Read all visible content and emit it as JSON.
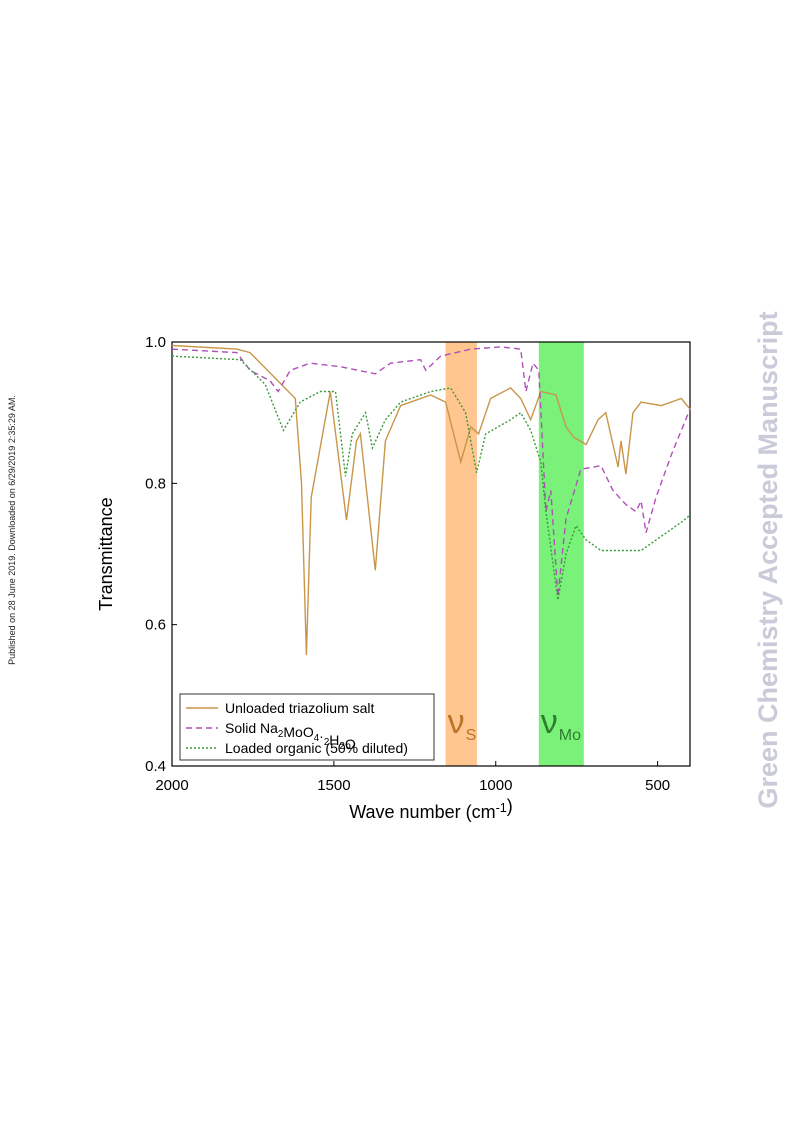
{
  "side_note": "Published on 28 June 2019. Downloaded on 6/29/2019 2:35:29 AM.",
  "watermark": "Green Chemistry Accepted Manuscript",
  "chart_data": {
    "type": "line",
    "x_label": "Wave number (cm-1)",
    "y_label": "Transmittance",
    "xlim": [
      2000,
      400
    ],
    "ylim": [
      0.4,
      1.0
    ],
    "xticks": [
      2000,
      1500,
      1000,
      500
    ],
    "yticks": [
      0.4,
      0.6,
      0.8,
      {
        "value": 1.0,
        "label": "1.0"
      }
    ],
    "bands": [
      {
        "from": 1155,
        "to": 1058,
        "color": "#ffc690",
        "symbol": "ν",
        "subscript": "S",
        "text_color": "#b8752a"
      },
      {
        "from": 867,
        "to": 728,
        "color": "#7af27a",
        "symbol": "ν",
        "subscript": "Mo",
        "text_color": "#2f7f2f"
      }
    ],
    "series": [
      {
        "name": "Unloaded triazolium salt",
        "color": "#c8964a",
        "dash": "solid",
        "x": [
          2000,
          1800,
          1759,
          1619,
          1600,
          1585,
          1570,
          1511,
          1461,
          1430,
          1418,
          1372,
          1341,
          1294,
          1201,
          1155,
          1108,
          1077,
          1053,
          1016,
          954,
          923,
          892,
          861,
          814,
          783,
          759,
          721,
          684,
          660,
          622,
          613,
          598,
          576,
          551,
          489,
          427,
          400
        ],
        "values": [
          0.995,
          0.99,
          0.985,
          0.92,
          0.8,
          0.557,
          0.78,
          0.93,
          0.748,
          0.86,
          0.87,
          0.677,
          0.86,
          0.91,
          0.925,
          0.915,
          0.83,
          0.88,
          0.87,
          0.92,
          0.935,
          0.92,
          0.89,
          0.93,
          0.925,
          0.88,
          0.865,
          0.855,
          0.89,
          0.9,
          0.823,
          0.86,
          0.813,
          0.9,
          0.915,
          0.91,
          0.92,
          0.905
        ]
      },
      {
        "name": "Solid Na2MoO4·2H2O",
        "color": "#b050b8",
        "dash": "dashed",
        "x": [
          2000,
          1800,
          1759,
          1697,
          1672,
          1635,
          1573,
          1480,
          1372,
          1325,
          1232,
          1216,
          1170,
          1077,
          985,
          923,
          907,
          885,
          867,
          845,
          830,
          808,
          783,
          737,
          675,
          638,
          598,
          567,
          551,
          536,
          505,
          458,
          400
        ],
        "values": [
          0.99,
          0.985,
          0.96,
          0.945,
          0.93,
          0.96,
          0.97,
          0.965,
          0.955,
          0.97,
          0.975,
          0.96,
          0.98,
          0.99,
          0.993,
          0.99,
          0.93,
          0.97,
          0.96,
          0.76,
          0.79,
          0.64,
          0.75,
          0.82,
          0.825,
          0.79,
          0.77,
          0.76,
          0.775,
          0.73,
          0.78,
          0.84,
          0.905
        ]
      },
      {
        "name": "Loaded organic (50% diluted)",
        "color": "#3a9a3a",
        "dash": "dotted",
        "x": [
          2000,
          1789,
          1712,
          1656,
          1604,
          1542,
          1495,
          1464,
          1443,
          1402,
          1381,
          1341,
          1294,
          1201,
          1139,
          1093,
          1059,
          1031,
          954,
          923,
          892,
          861,
          845,
          808,
          783,
          752,
          721,
          675,
          551,
          427,
          400
        ],
        "values": [
          0.98,
          0.975,
          0.94,
          0.875,
          0.915,
          0.93,
          0.93,
          0.81,
          0.87,
          0.9,
          0.85,
          0.89,
          0.915,
          0.93,
          0.935,
          0.9,
          0.815,
          0.87,
          0.89,
          0.9,
          0.875,
          0.83,
          0.76,
          0.635,
          0.7,
          0.74,
          0.72,
          0.705,
          0.705,
          0.745,
          0.755
        ]
      }
    ]
  }
}
